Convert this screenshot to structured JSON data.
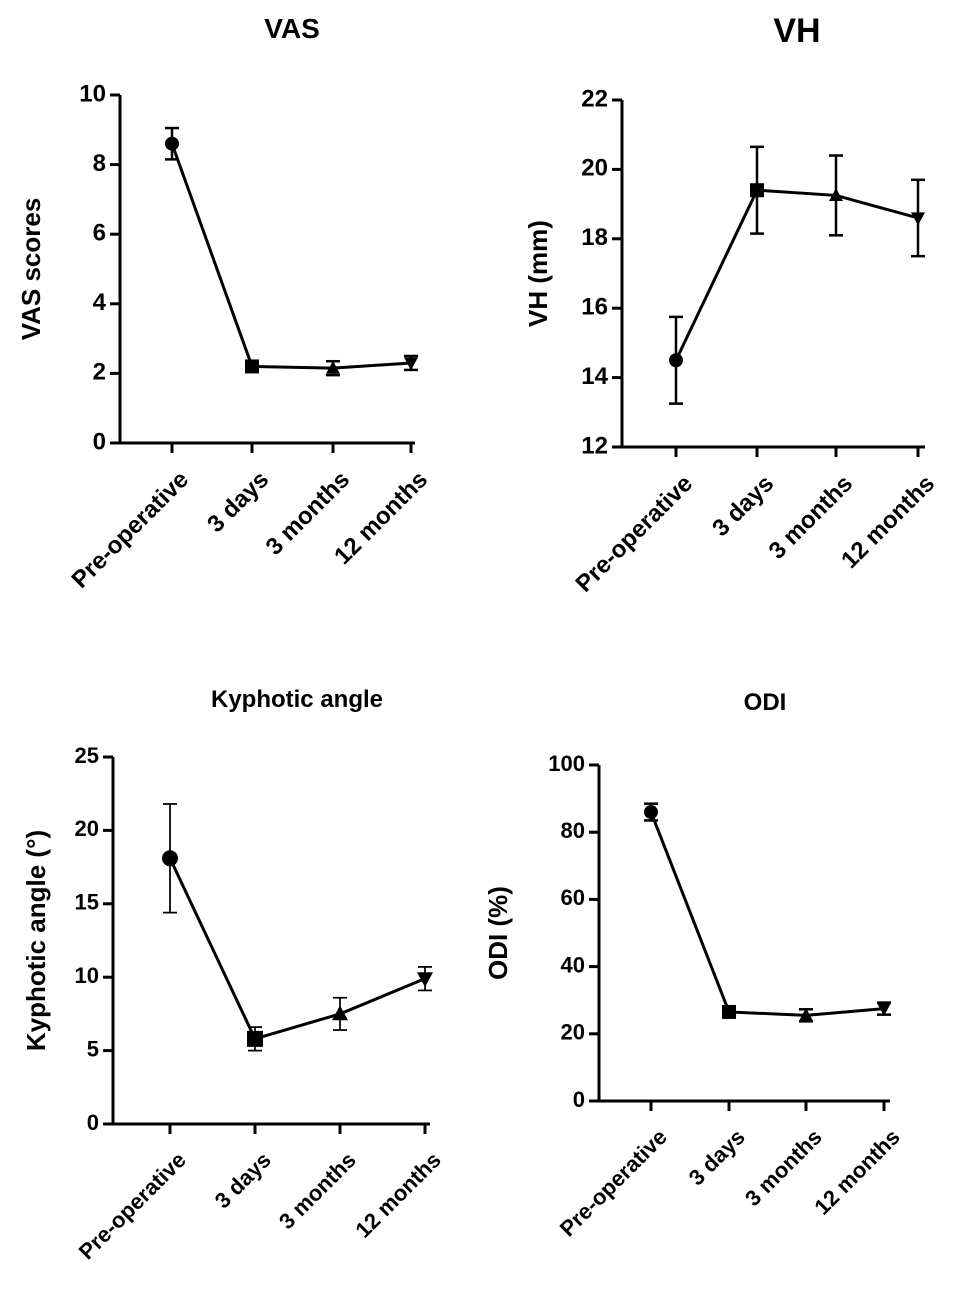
{
  "chart_data": [
    {
      "type": "line",
      "title": "VAS",
      "xlabel": "",
      "ylabel": "VAS scores",
      "categories": [
        "Pre-operative",
        "3 days",
        "3 months",
        "12 months"
      ],
      "values": [
        8.6,
        2.2,
        2.15,
        2.3
      ],
      "errors": [
        0.45,
        0.15,
        0.2,
        0.2
      ],
      "markers": [
        "circle",
        "square",
        "triangle-up",
        "triangle-down"
      ],
      "ylim": [
        0,
        10
      ],
      "yticks": [
        0,
        2,
        4,
        6,
        8,
        10
      ],
      "grid": false
    },
    {
      "type": "line",
      "title": "VH",
      "xlabel": "",
      "ylabel": "VH (mm)",
      "categories": [
        "Pre-operative",
        "3 days",
        "3 months",
        "12 months"
      ],
      "values": [
        14.5,
        19.4,
        19.25,
        18.6
      ],
      "errors": [
        1.25,
        1.25,
        1.15,
        1.1
      ],
      "markers": [
        "circle",
        "square",
        "triangle-up",
        "triangle-down"
      ],
      "ylim": [
        12,
        22
      ],
      "yticks": [
        12,
        14,
        16,
        18,
        20,
        22
      ],
      "grid": false
    },
    {
      "type": "line",
      "title": "Kyphotic angle",
      "xlabel": "",
      "ylabel": "Kyphotic angle (°)",
      "categories": [
        "Pre-operative",
        "3 days",
        "3 months",
        "12 months"
      ],
      "values": [
        18.1,
        5.8,
        7.5,
        9.9
      ],
      "errors": [
        3.7,
        0.8,
        1.1,
        0.8
      ],
      "markers": [
        "circle",
        "square",
        "triangle-up",
        "triangle-down"
      ],
      "ylim": [
        0,
        25
      ],
      "yticks": [
        0,
        5,
        10,
        15,
        20,
        25
      ],
      "grid": false
    },
    {
      "type": "line",
      "title": "ODI",
      "xlabel": "",
      "ylabel": "ODI (%)",
      "categories": [
        "Pre-operative",
        "3 days",
        "3 months",
        "12 months"
      ],
      "values": [
        86,
        26.5,
        25.5,
        27.5
      ],
      "errors": [
        2.5,
        1.2,
        1.8,
        1.8
      ],
      "markers": [
        "circle",
        "square",
        "triangle-up",
        "triangle-down"
      ],
      "ylim": [
        0,
        100
      ],
      "yticks": [
        0,
        20,
        40,
        60,
        80,
        100
      ],
      "grid": false
    }
  ]
}
